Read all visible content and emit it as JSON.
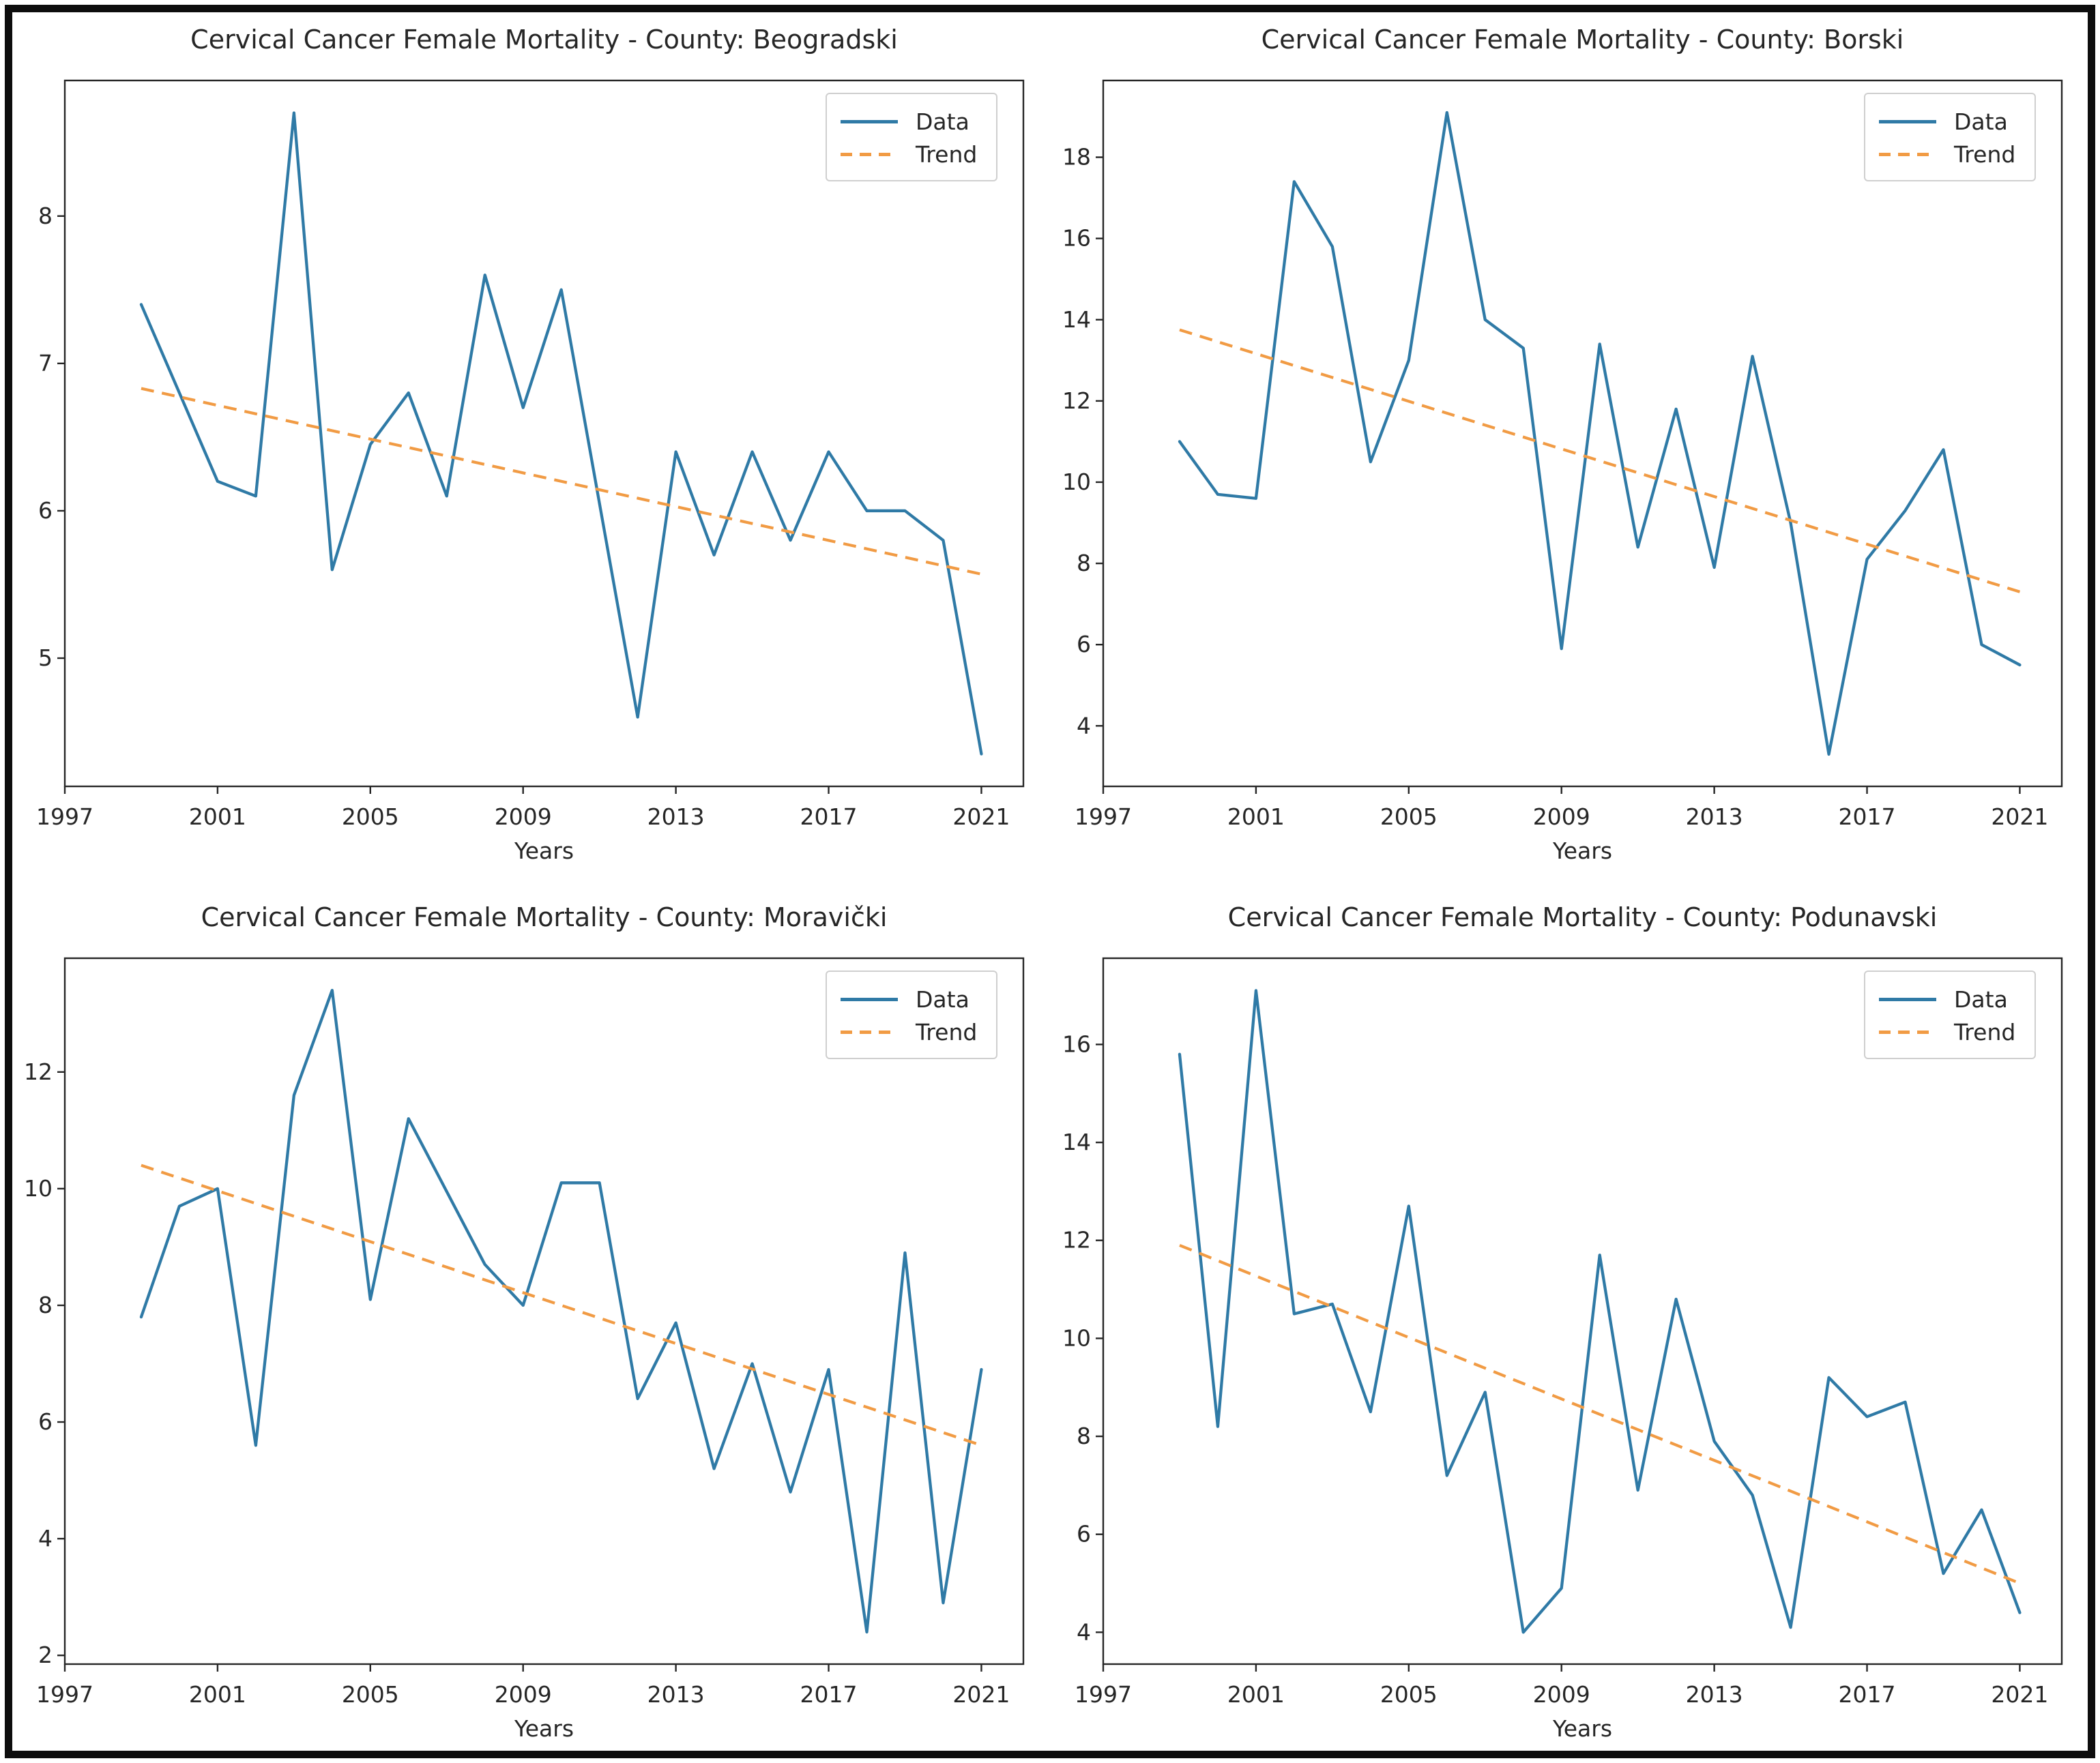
{
  "figure": {
    "background_color": "#ffffff",
    "frame_color": "#0d0d0d",
    "text_color": "#262626",
    "spine_color": "#262626",
    "data_color": "#2f7aa6",
    "trend_color": "#f19b44"
  },
  "chart_data": {
    "type": "line",
    "xlabel": "Years",
    "legend": [
      "Data",
      "Trend"
    ],
    "legend_position": "upper right",
    "grid": false,
    "x_years": [
      1999,
      2000,
      2001,
      2002,
      2003,
      2004,
      2005,
      2006,
      2007,
      2008,
      2009,
      2010,
      2011,
      2012,
      2013,
      2014,
      2015,
      2016,
      2017,
      2018,
      2019,
      2020,
      2021
    ],
    "x_ticks": [
      1997,
      2001,
      2005,
      2009,
      2013,
      2017,
      2021
    ],
    "xlim": [
      1997.0,
      2022.1
    ],
    "charts": [
      {
        "county": "Beogradski",
        "title": "Cervical Cancer Female Mortality - County: Beogradski",
        "y_ticks": [
          5,
          6,
          7,
          8
        ],
        "ylim": [
          4.13,
          8.92
        ],
        "data": [
          7.4,
          6.8,
          6.2,
          6.1,
          8.7,
          5.6,
          6.45,
          6.8,
          6.1,
          7.6,
          6.7,
          7.5,
          6.05,
          4.6,
          6.4,
          5.7,
          6.4,
          5.8,
          6.4,
          6.0,
          6.0,
          5.8,
          4.35
        ],
        "trend_start": 6.83,
        "trend_end": 5.57
      },
      {
        "county": "Borski",
        "title": "Cervical Cancer Female Mortality - County: Borski",
        "y_ticks": [
          4,
          6,
          8,
          10,
          12,
          14,
          16,
          18
        ],
        "ylim": [
          2.51,
          19.89
        ],
        "data": [
          11.0,
          9.7,
          9.6,
          17.4,
          15.8,
          10.5,
          13.0,
          19.1,
          14.0,
          13.3,
          5.9,
          13.4,
          8.4,
          11.8,
          7.9,
          13.1,
          9.0,
          3.3,
          8.1,
          9.3,
          10.8,
          6.0,
          5.5
        ],
        "trend_start": 13.75,
        "trend_end": 7.3
      },
      {
        "county": "Moravički",
        "title": "Cervical Cancer Female Mortality - County: Moravički",
        "y_ticks": [
          2,
          4,
          6,
          8,
          10,
          12
        ],
        "ylim": [
          1.85,
          13.95
        ],
        "data": [
          7.8,
          9.7,
          10.0,
          5.6,
          11.6,
          13.4,
          8.1,
          11.2,
          9.95,
          8.7,
          8.0,
          10.1,
          10.1,
          6.4,
          7.7,
          5.2,
          7.0,
          4.8,
          6.9,
          2.4,
          8.9,
          2.9,
          6.9
        ],
        "trend_start": 10.4,
        "trend_end": 5.6
      },
      {
        "county": "Podunavski",
        "title": "Cervical Cancer Female Mortality - County: Podunavski",
        "y_ticks": [
          4,
          6,
          8,
          10,
          12,
          14,
          16
        ],
        "ylim": [
          3.35,
          17.76
        ],
        "data": [
          15.8,
          8.2,
          17.1,
          10.5,
          10.7,
          8.5,
          12.7,
          7.2,
          8.9,
          4.0,
          4.9,
          11.7,
          6.9,
          10.8,
          7.9,
          6.8,
          4.1,
          9.2,
          8.4,
          8.7,
          5.2,
          6.5,
          4.4
        ],
        "trend_start": 11.9,
        "trend_end": 5.0
      }
    ]
  }
}
